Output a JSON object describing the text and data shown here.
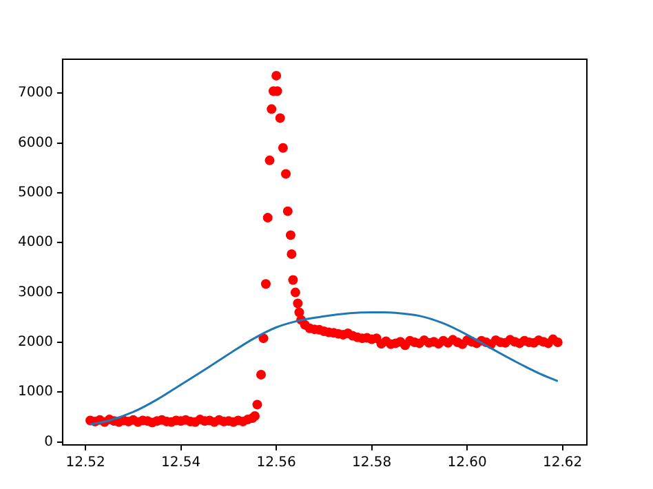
{
  "chart_data": {
    "type": "scatter",
    "grid": false,
    "legend": false,
    "xlim": [
      12.5152,
      12.6251
    ],
    "ylim": [
      -60,
      7680
    ],
    "xticks": [
      {
        "value": 12.52,
        "label": "12.52"
      },
      {
        "value": 12.54,
        "label": "12.54"
      },
      {
        "value": 12.56,
        "label": "12.56"
      },
      {
        "value": 12.58,
        "label": "12.58"
      },
      {
        "value": 12.6,
        "label": "12.60"
      },
      {
        "value": 12.62,
        "label": "12.62"
      }
    ],
    "yticks": [
      0,
      1000,
      2000,
      3000,
      4000,
      5000,
      6000,
      7000
    ],
    "series": [
      {
        "type": "line",
        "color": "#1f77b4",
        "marker": "none",
        "x": [
          12.521,
          12.525,
          12.53,
          12.535,
          12.54,
          12.545,
          12.55,
          12.555,
          12.56,
          12.565,
          12.57,
          12.575,
          12.58,
          12.5825,
          12.585,
          12.59,
          12.595,
          12.6,
          12.605,
          12.61,
          12.615,
          12.619
        ],
        "values": [
          350,
          430,
          600,
          850,
          1150,
          1450,
          1760,
          2060,
          2300,
          2440,
          2520,
          2580,
          2600,
          2600,
          2590,
          2530,
          2380,
          2150,
          1880,
          1620,
          1380,
          1220
        ]
      },
      {
        "type": "scatter",
        "color": "#ff0000",
        "marker": "circle",
        "x": [
          12.521,
          12.522,
          12.523,
          12.524,
          12.525,
          12.526,
          12.527,
          12.528,
          12.529,
          12.53,
          12.531,
          12.532,
          12.533,
          12.534,
          12.535,
          12.536,
          12.537,
          12.538,
          12.539,
          12.54,
          12.541,
          12.542,
          12.543,
          12.544,
          12.545,
          12.546,
          12.547,
          12.548,
          12.549,
          12.55,
          12.551,
          12.552,
          12.553,
          12.554,
          12.555,
          12.5555,
          12.556,
          12.5568,
          12.5573,
          12.5578,
          12.5582,
          12.5586,
          12.559,
          12.5594,
          12.56,
          12.5602,
          12.5608,
          12.5614,
          12.562,
          12.5624,
          12.563,
          12.5632,
          12.5635,
          12.564,
          12.5645,
          12.5648,
          12.5652,
          12.566,
          12.567,
          12.568,
          12.569,
          12.57,
          12.571,
          12.572,
          12.573,
          12.574,
          12.575,
          12.576,
          12.577,
          12.578,
          12.579,
          12.58,
          12.581,
          12.582,
          12.583,
          12.584,
          12.585,
          12.586,
          12.587,
          12.588,
          12.589,
          12.59,
          12.591,
          12.592,
          12.593,
          12.594,
          12.595,
          12.596,
          12.597,
          12.598,
          12.599,
          12.6,
          12.601,
          12.602,
          12.603,
          12.604,
          12.605,
          12.606,
          12.607,
          12.608,
          12.609,
          12.61,
          12.611,
          12.612,
          12.613,
          12.614,
          12.615,
          12.616,
          12.617,
          12.618,
          12.619
        ],
        "values": [
          430,
          410,
          440,
          400,
          450,
          420,
          400,
          430,
          410,
          440,
          400,
          430,
          420,
          390,
          420,
          440,
          410,
          400,
          430,
          420,
          440,
          410,
          400,
          450,
          420,
          430,
          400,
          440,
          410,
          420,
          400,
          430,
          410,
          450,
          480,
          520,
          750,
          1350,
          2080,
          3170,
          4500,
          5650,
          6680,
          7040,
          7350,
          7040,
          6500,
          5900,
          5380,
          4630,
          4150,
          3770,
          3250,
          3000,
          2780,
          2600,
          2450,
          2350,
          2280,
          2260,
          2250,
          2220,
          2200,
          2190,
          2170,
          2150,
          2180,
          2130,
          2100,
          2080,
          2090,
          2060,
          2080,
          1970,
          2020,
          1960,
          1980,
          2010,
          1940,
          2030,
          2000,
          1980,
          2040,
          1990,
          2010,
          1970,
          2030,
          1990,
          2050,
          2000,
          1960,
          2040,
          2010,
          1980,
          2030,
          2000,
          1960,
          2040,
          2000,
          1990,
          2050,
          2010,
          1980,
          2030,
          2000,
          1990,
          2040,
          2010,
          1980,
          2060,
          2000
        ]
      }
    ]
  }
}
